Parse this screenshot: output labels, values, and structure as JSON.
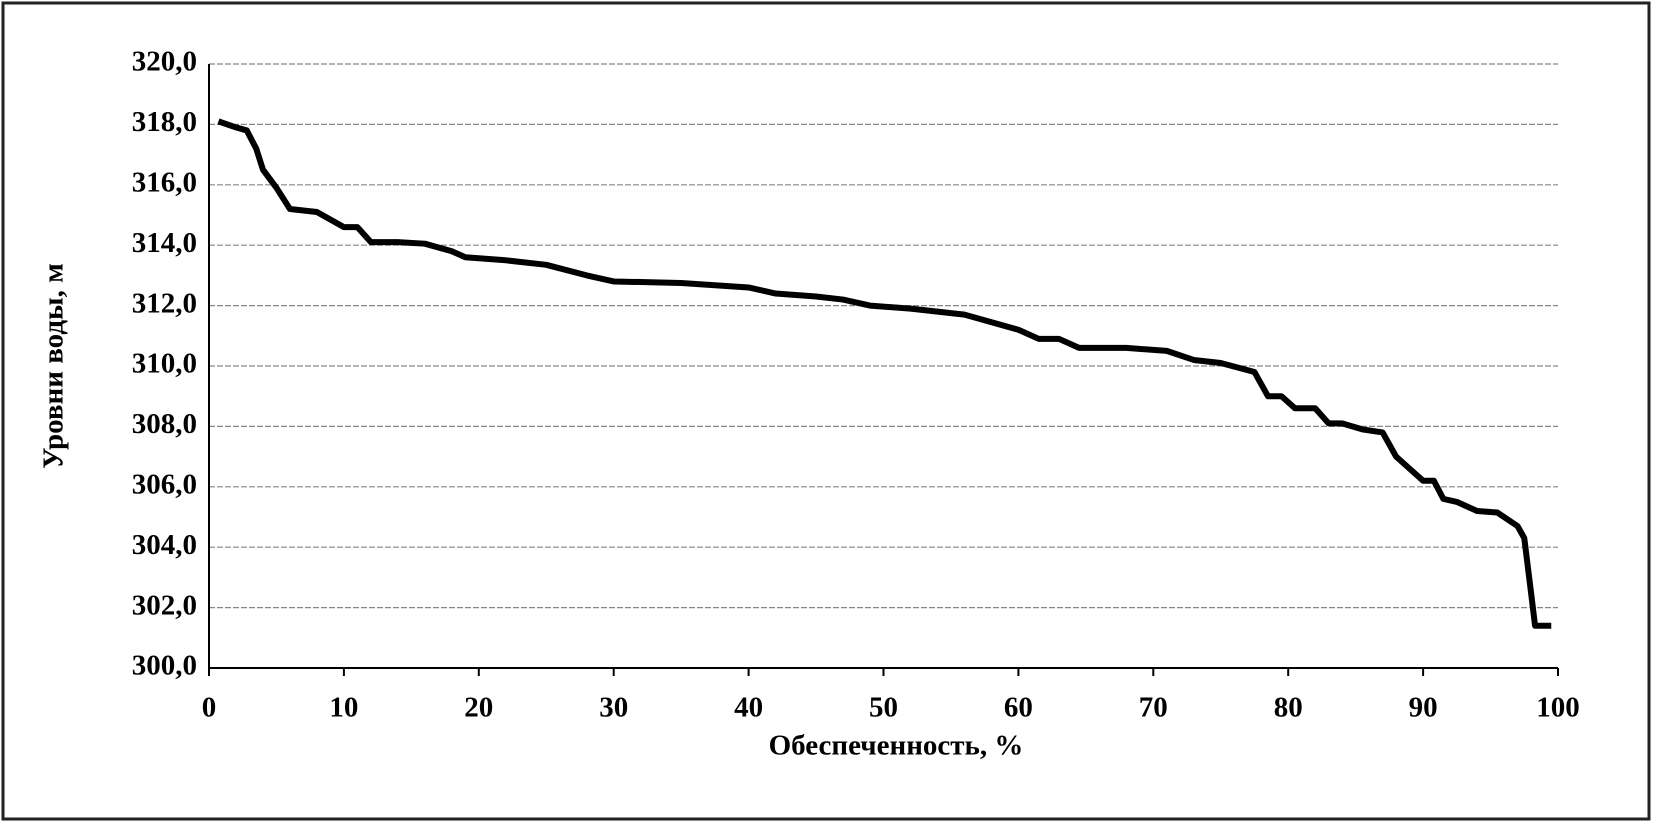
{
  "chart_data": {
    "type": "line",
    "x_label": "Обеспеченность, %",
    "y_label": "Уровни воды, м",
    "x": [
      0.7,
      2,
      2.8,
      3.5,
      4,
      5,
      6,
      8,
      10,
      11,
      12,
      14,
      16,
      18,
      19,
      22,
      25,
      28,
      30,
      35,
      40,
      42,
      45,
      47,
      49,
      52,
      56,
      60,
      61.5,
      63,
      64.5,
      68,
      71,
      73,
      75,
      77.5,
      78.5,
      79.5,
      80.5,
      82,
      83,
      84,
      85.5,
      87,
      88,
      89,
      90,
      90.8,
      91.5,
      92.5,
      94,
      95.5,
      97,
      97.5,
      98,
      98.3,
      99.5
    ],
    "values": [
      318.1,
      317.9,
      317.8,
      317.2,
      316.5,
      315.9,
      315.2,
      315.1,
      314.6,
      314.6,
      314.1,
      314.1,
      314.05,
      313.8,
      313.6,
      313.5,
      313.35,
      313.0,
      312.8,
      312.75,
      312.6,
      312.4,
      312.3,
      312.2,
      312.0,
      311.9,
      311.7,
      311.2,
      310.9,
      310.9,
      310.6,
      310.6,
      310.5,
      310.2,
      310.1,
      309.8,
      309.0,
      309.0,
      308.6,
      308.6,
      308.1,
      308.1,
      307.9,
      307.8,
      307.0,
      306.6,
      306.2,
      306.2,
      305.6,
      305.5,
      305.2,
      305.15,
      304.7,
      304.3,
      302.5,
      301.4,
      301.4
    ],
    "color": "#000000",
    "xlim": [
      0,
      100
    ],
    "xticks": [
      0,
      10,
      20,
      30,
      40,
      50,
      60,
      70,
      80,
      90,
      100
    ],
    "ylim": [
      300,
      320
    ],
    "yticks": [
      {
        "value": 300,
        "label": "300,0"
      },
      {
        "value": 302,
        "label": "302,0"
      },
      {
        "value": 304,
        "label": "304,0"
      },
      {
        "value": 306,
        "label": "306,0"
      },
      {
        "value": 308,
        "label": "308,0"
      },
      {
        "value": 310,
        "label": "310,0"
      },
      {
        "value": 312,
        "label": "312,0"
      },
      {
        "value": 314,
        "label": "314,0"
      },
      {
        "value": 316,
        "label": "316,0"
      },
      {
        "value": 318,
        "label": "318,0"
      },
      {
        "value": 320,
        "label": "320,0"
      }
    ],
    "grid": true
  }
}
